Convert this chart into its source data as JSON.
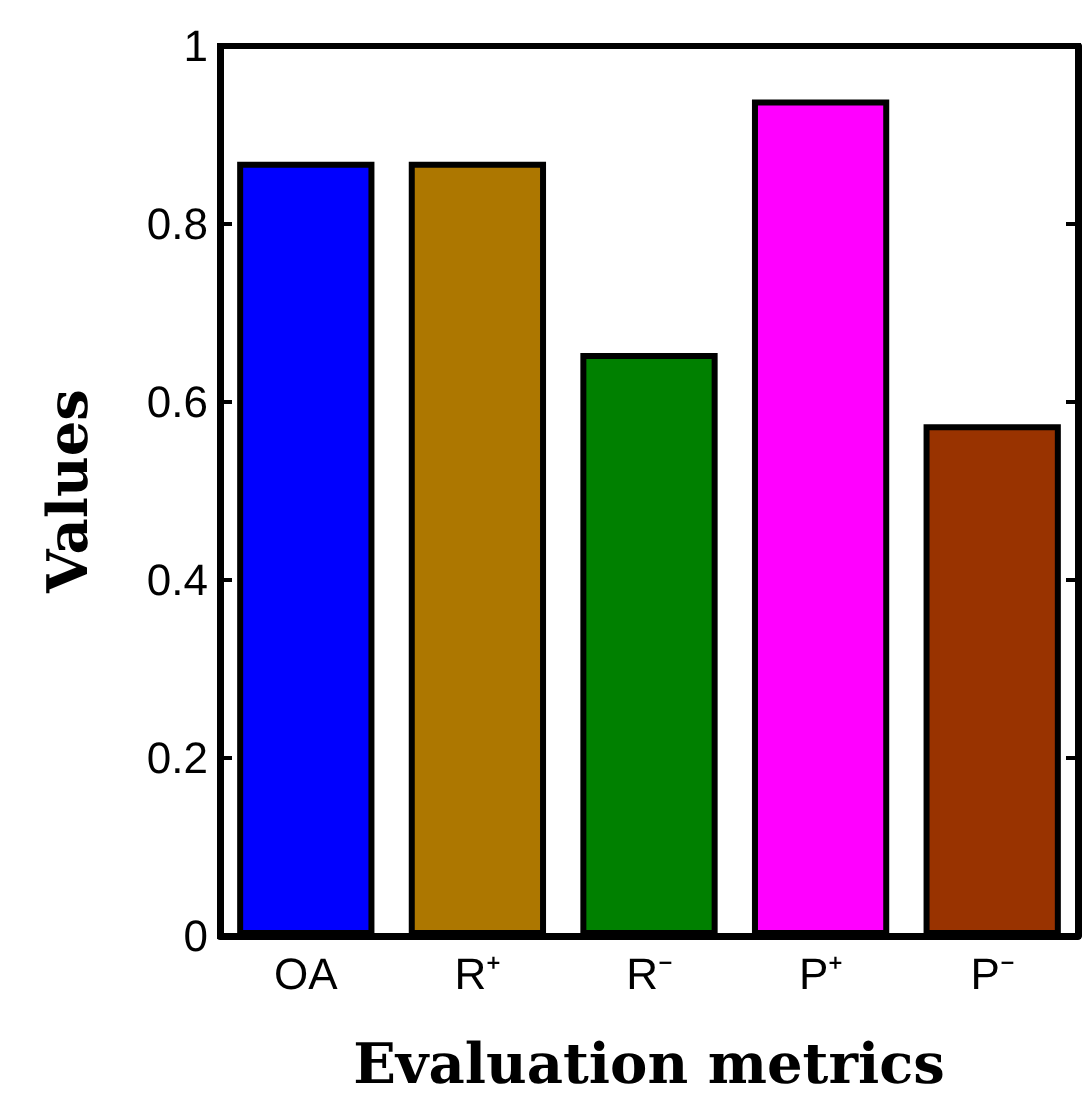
{
  "chart_data": {
    "type": "bar",
    "xlabel": "Evaluation metrics",
    "ylabel": "Values",
    "categories": [
      "OA",
      "R⁺",
      "R⁻",
      "P⁺",
      "P⁻"
    ],
    "values": [
      0.87,
      0.87,
      0.655,
      0.94,
      0.575
    ],
    "colors": [
      "#0000ff",
      "#ad7700",
      "#008000",
      "#ff00ff",
      "#993300"
    ],
    "ylim": [
      0,
      1
    ],
    "yticks": [
      0,
      0.2,
      0.4,
      0.6,
      0.8,
      1
    ],
    "grid": false
  }
}
